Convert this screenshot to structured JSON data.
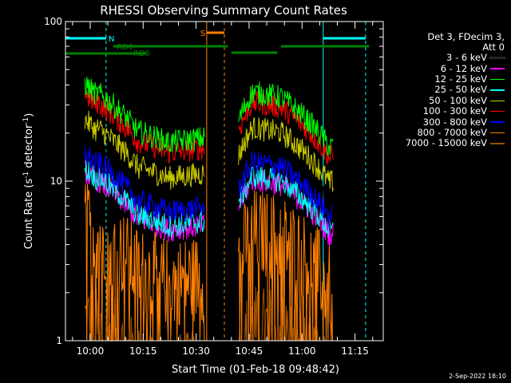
{
  "chart_data": {
    "type": "line",
    "title": "RHESSI Observing Summary Count Rates",
    "xlabel": "Start Time (01-Feb-18 09:48:42)",
    "ylabel_main": "Count Rate (s",
    "ylabel_sup1": "-1",
    "ylabel_mid": " detector",
    "ylabel_sup2": "-1",
    "ylabel_end": ")",
    "yscale": "log",
    "ylim": [
      1,
      100
    ],
    "xlim_minutes": [
      -7,
      83
    ],
    "y_ticks": [
      "100",
      "10",
      "1"
    ],
    "x_ticks": [
      "10:00",
      "10:15",
      "10:30",
      "10:45",
      "11:00",
      "11:15"
    ],
    "x_tick_minutes": [
      0,
      15,
      30,
      45,
      60,
      75
    ],
    "legend_header": [
      "Det 3, FDecim 3,",
      "Att 0"
    ],
    "series": [
      {
        "name": "3 - 6 keV",
        "color": "#000000",
        "level": 13
      },
      {
        "name": "6 - 12 keV",
        "color": "#ff00ff",
        "level": 8.5
      },
      {
        "name": "12 - 25 keV",
        "color": "#00ff00",
        "level": 30
      },
      {
        "name": "25 - 50 keV",
        "color": "#00ffff",
        "level": 9
      },
      {
        "name": "50 - 100 keV",
        "color": "#cccc00",
        "level": 18
      },
      {
        "name": "100 - 300 keV",
        "color": "#ff0000",
        "level": 26
      },
      {
        "name": "300 - 800 keV",
        "color": "#0000ff",
        "level": 11
      },
      {
        "name": "800 - 7000 keV",
        "color": "#ff8000",
        "level": 4
      },
      {
        "name": "7000 - 15000 keV",
        "color": "#a05000",
        "level": 1
      }
    ],
    "flags": {
      "N_label": "N",
      "S_label": "S",
      "RD0_label": "RD0",
      "RD6_label": "RD6",
      "night_color": "#00ffff",
      "saa_color": "#ff8000",
      "decim_color": "#008000"
    },
    "timestamp": "2-Sep-2022 18:10"
  }
}
